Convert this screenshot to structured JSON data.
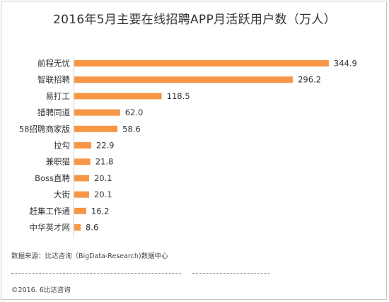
{
  "chart_data": {
    "type": "bar",
    "orientation": "horizontal",
    "title": "2016年5月主要在线招聘APP月活跃用户数（万人）",
    "categories": [
      "前程无忧",
      "智联招聘",
      "易打工",
      "猎聘同道",
      "58招聘商家版",
      "拉勾",
      "兼职猫",
      "Boss直聘",
      "大街",
      "赶集工作通",
      "中华英才网"
    ],
    "values": [
      344.9,
      296.2,
      118.5,
      62.0,
      58.6,
      22.9,
      21.8,
      20.1,
      20.1,
      16.2,
      8.6
    ],
    "value_labels": [
      "344.9",
      "296.2",
      "118.5",
      "62.0",
      "58.6",
      "22.9",
      "21.8",
      "20.1",
      "20.1",
      "16.2",
      "8.6"
    ],
    "bar_color": "#f79646",
    "grid": false,
    "xlim": [
      0,
      345
    ]
  },
  "footer": {
    "source": "数据来源：比达咨询（BigData-Research)数据中心",
    "copyright": "©2016. 6比达咨询"
  }
}
